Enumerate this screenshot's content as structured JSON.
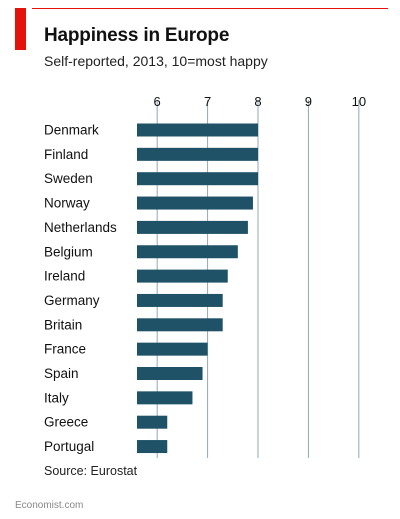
{
  "chart_data": {
    "type": "bar",
    "orientation": "horizontal",
    "title": "Happiness in Europe",
    "subtitle": "Self-reported, 2013, 10=most happy",
    "source": "Source: Eurostat",
    "categories": [
      "Denmark",
      "Finland",
      "Sweden",
      "Norway",
      "Netherlands",
      "Belgium",
      "Ireland",
      "Germany",
      "Britain",
      "France",
      "Spain",
      "Italy",
      "Greece",
      "Portugal"
    ],
    "values": [
      8.0,
      8.0,
      8.0,
      7.9,
      7.8,
      7.6,
      7.4,
      7.3,
      7.3,
      7.0,
      6.9,
      6.7,
      6.2,
      6.2
    ],
    "xlim": [
      5.6,
      10.4
    ],
    "xticks": [
      "6",
      "7",
      "8",
      "9",
      "10"
    ],
    "xtick_values": [
      6,
      7,
      8,
      9,
      10
    ],
    "grid": true,
    "bar_color": "#1f5266",
    "grid_color": "#8fa9b4",
    "accent_color": "#e3120b"
  },
  "footer": "Economist.com"
}
